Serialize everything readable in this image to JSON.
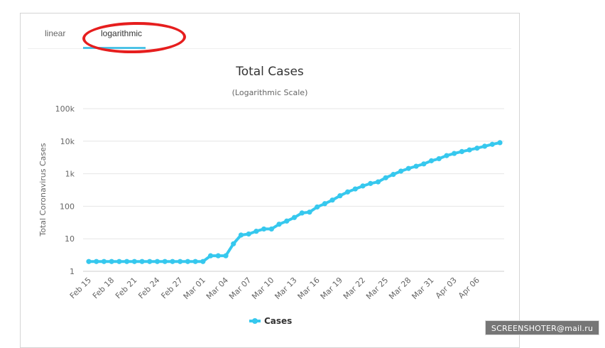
{
  "tabs": [
    {
      "label": "linear",
      "active": false
    },
    {
      "label": "logarithmic",
      "active": true
    }
  ],
  "colors": {
    "series": "#36c8ee",
    "tab_active_underline": "#4cc2e6",
    "annotation": "#e61e1e"
  },
  "watermark": "SCREENSHOTER@mail.ru",
  "chart_data": {
    "type": "line",
    "title": "Total Cases",
    "subtitle": "(Logarithmic Scale)",
    "xlabel": "",
    "ylabel": "Total Coronavirus Cases",
    "y_scale": "log",
    "ylim": [
      1,
      100000
    ],
    "y_ticks": [
      1,
      10,
      100,
      1000,
      10000,
      100000
    ],
    "y_tick_labels": [
      "1",
      "10",
      "100",
      "1k",
      "10k",
      "100k"
    ],
    "x_tick_labels": [
      "Feb 15",
      "Feb 18",
      "Feb 21",
      "Feb 24",
      "Feb 27",
      "Mar 01",
      "Mar 04",
      "Mar 07",
      "Mar 10",
      "Mar 13",
      "Mar 16",
      "Mar 19",
      "Mar 22",
      "Mar 25",
      "Mar 28",
      "Mar 31",
      "Apr 03",
      "Apr 06"
    ],
    "grid": true,
    "legend_position": "bottom-center",
    "series": [
      {
        "name": "Cases",
        "x": [
          "Feb 15",
          "Feb 16",
          "Feb 17",
          "Feb 18",
          "Feb 19",
          "Feb 20",
          "Feb 21",
          "Feb 22",
          "Feb 23",
          "Feb 24",
          "Feb 25",
          "Feb 26",
          "Feb 27",
          "Feb 28",
          "Feb 29",
          "Mar 01",
          "Mar 02",
          "Mar 03",
          "Mar 04",
          "Mar 05",
          "Mar 06",
          "Mar 07",
          "Mar 08",
          "Mar 09",
          "Mar 10",
          "Mar 11",
          "Mar 12",
          "Mar 13",
          "Mar 14",
          "Mar 15",
          "Mar 16",
          "Mar 17",
          "Mar 18",
          "Mar 19",
          "Mar 20",
          "Mar 21",
          "Mar 22",
          "Mar 23",
          "Mar 24",
          "Mar 25",
          "Mar 26",
          "Mar 27",
          "Mar 28",
          "Mar 29",
          "Mar 30",
          "Mar 31",
          "Apr 01",
          "Apr 02",
          "Apr 03",
          "Apr 04",
          "Apr 05",
          "Apr 06",
          "Apr 07",
          "Apr 08",
          "Apr 09"
        ],
        "values": [
          2,
          2,
          2,
          2,
          2,
          2,
          2,
          2,
          2,
          2,
          2,
          2,
          2,
          2,
          2,
          2,
          3,
          3,
          3,
          7,
          13,
          14,
          17,
          20,
          20,
          28,
          35,
          45,
          62,
          66,
          95,
          120,
          155,
          210,
          275,
          340,
          420,
          500,
          560,
          750,
          950,
          1200,
          1450,
          1700,
          2000,
          2500,
          2900,
          3600,
          4200,
          4800,
          5400,
          6100,
          7000,
          8000,
          9000
        ]
      }
    ]
  }
}
